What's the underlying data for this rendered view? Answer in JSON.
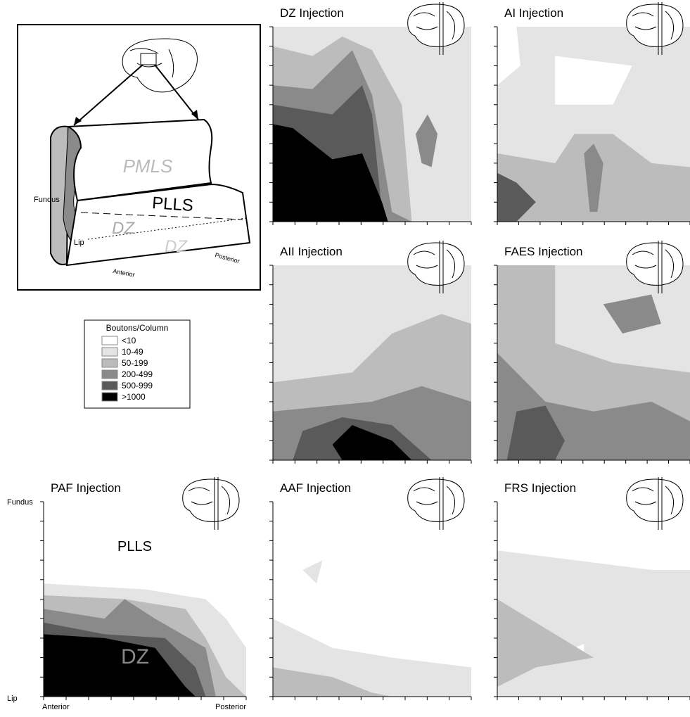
{
  "schematic": {
    "regions": [
      "PMLS",
      "PLLS",
      "DZ",
      "DZ"
    ],
    "edges": [
      "Fundus",
      "Lip"
    ],
    "directions": [
      "Anterior",
      "Posterior"
    ]
  },
  "legend": {
    "title": "Boutons/Column",
    "items": [
      {
        "label": "<10",
        "color": "#ffffff"
      },
      {
        "label": "10-49",
        "color": "#e4e4e4"
      },
      {
        "label": "50-199",
        "color": "#bcbcbc"
      },
      {
        "label": "200-499",
        "color": "#8a8a8a"
      },
      {
        "label": "500-999",
        "color": "#5a5a5a"
      },
      {
        "label": ">1000",
        "color": "#000000"
      }
    ]
  },
  "panels": [
    {
      "title": "DZ Injection"
    },
    {
      "title": "AI Injection"
    },
    {
      "title": "AII Injection"
    },
    {
      "title": "FAES Injection"
    },
    {
      "title": "PAF Injection",
      "axis": {
        "top": "Fundus",
        "bottom": "Lip",
        "left": "Anterior",
        "right": "Posterior"
      },
      "labels": [
        "PLLS",
        "DZ"
      ]
    },
    {
      "title": "AAF Injection"
    },
    {
      "title": "FRS Injection"
    }
  ]
}
